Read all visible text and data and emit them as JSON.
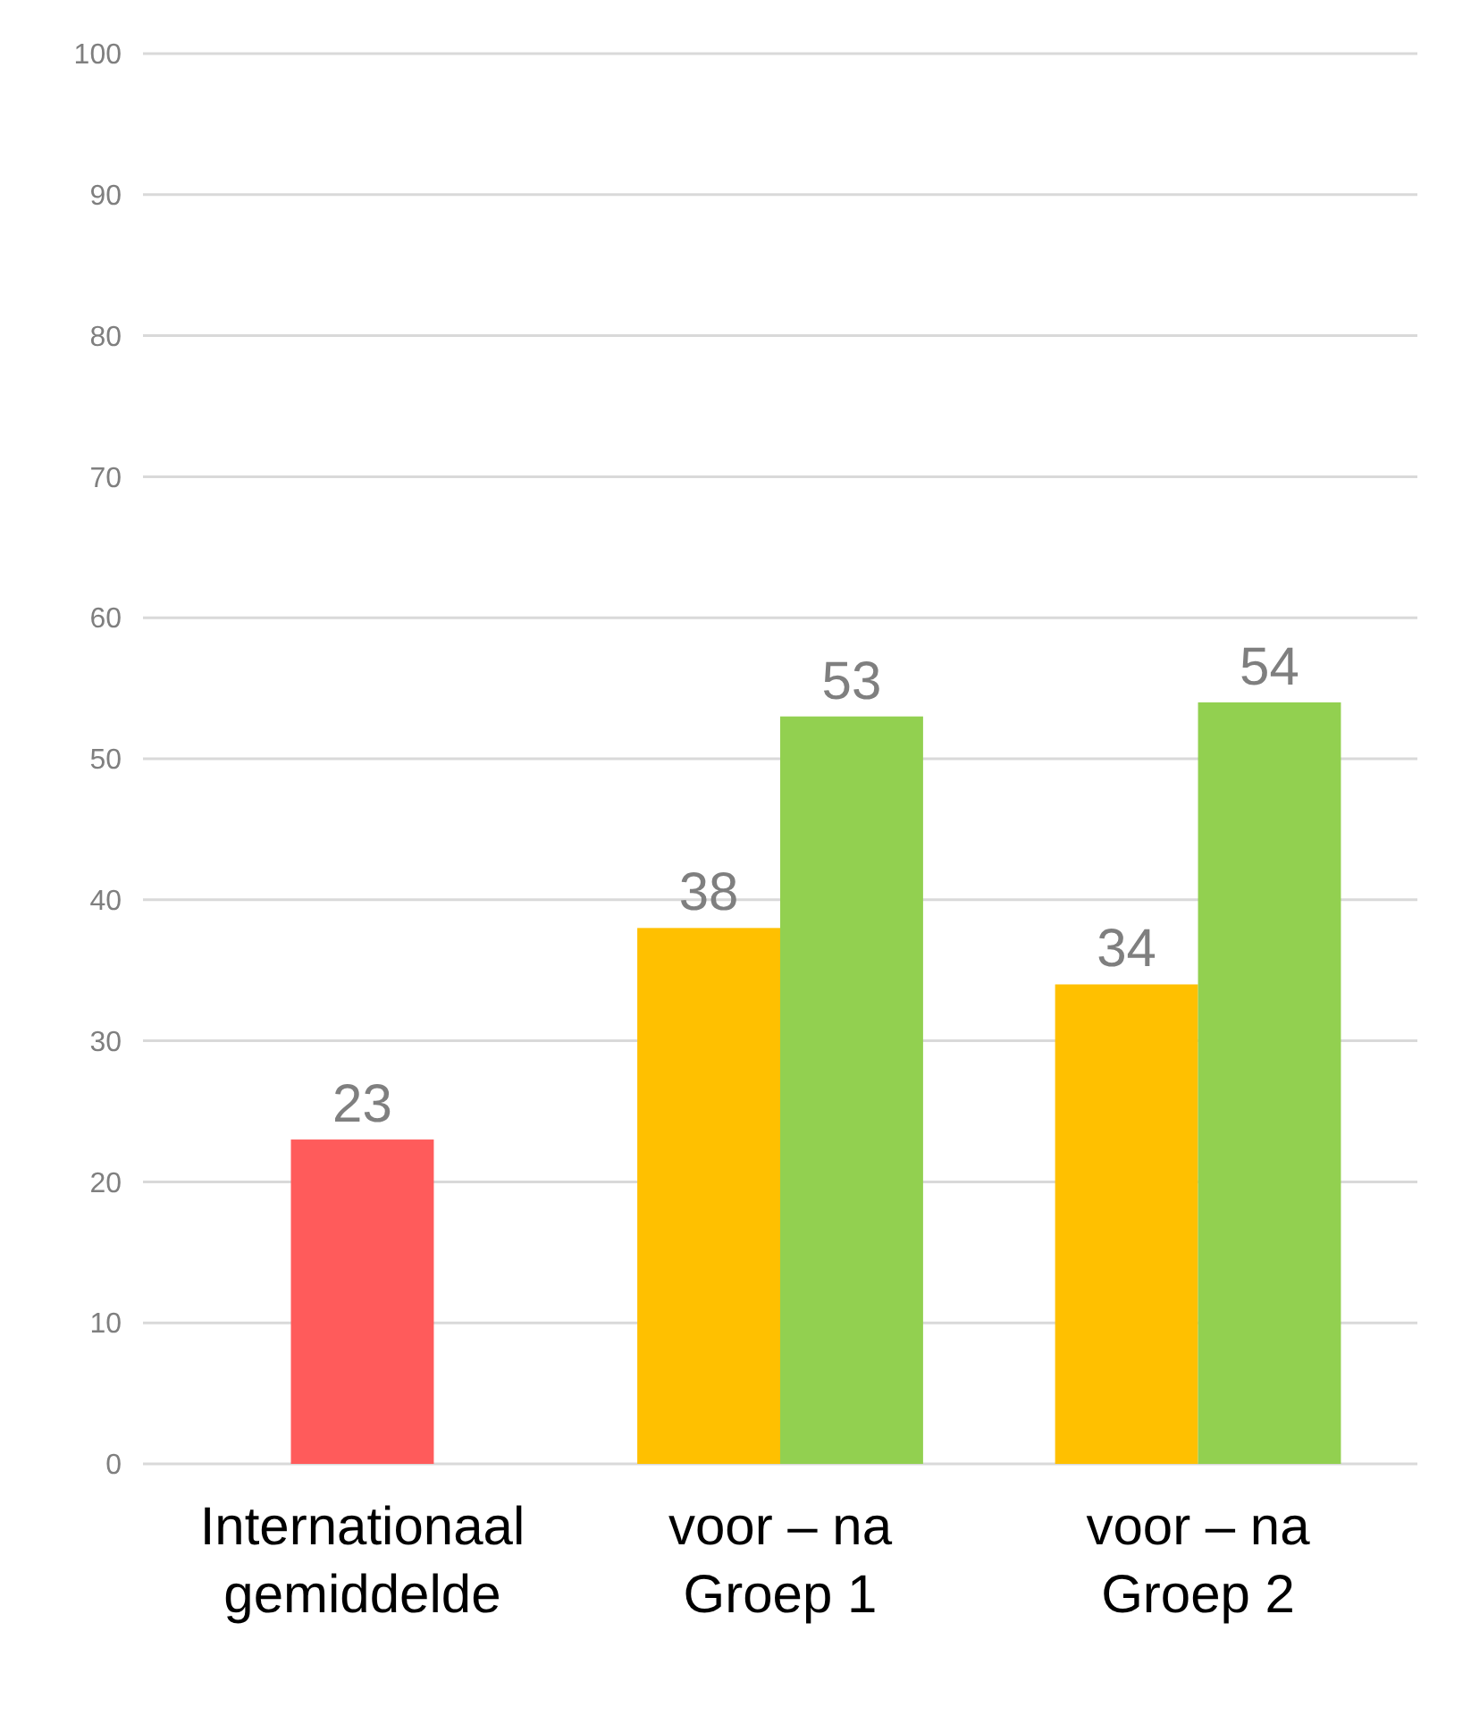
{
  "chart_data": {
    "type": "bar",
    "categories": [
      "Internationaal gemiddelde",
      "voor – na Groep 1",
      "voor – na Groep 2"
    ],
    "series": [
      {
        "colors": [
          "#ff5b5b",
          "#ffc000",
          "#ffc000"
        ],
        "values": [
          23,
          38,
          34
        ]
      },
      {
        "color": "#92d050",
        "values": [
          null,
          53,
          54
        ]
      }
    ],
    "ylim": [
      0,
      100
    ],
    "yticks": [
      0,
      10,
      20,
      30,
      40,
      50,
      60,
      70,
      80,
      90,
      100
    ],
    "grid": "y",
    "data_labels": true
  }
}
